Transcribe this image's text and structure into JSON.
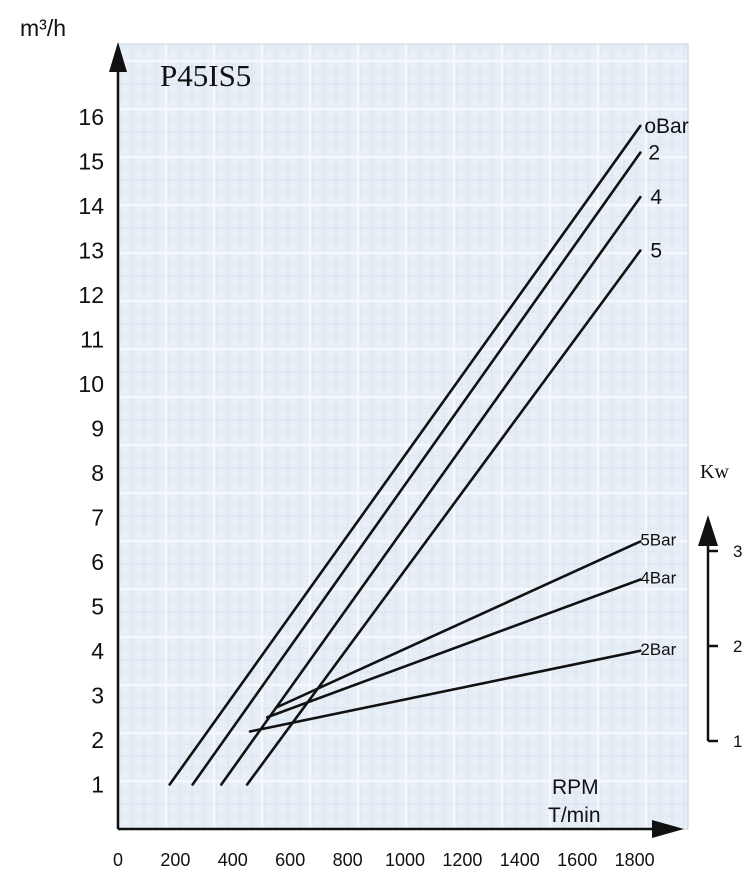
{
  "chart_data": {
    "type": "line",
    "title": "P45IS5",
    "ylabel": "m³/h",
    "xlabel_line1": "RPM",
    "xlabel_line2": "T/min",
    "y2label": "Kw",
    "x_ticks": [
      "0",
      "200",
      "400",
      "600",
      "800",
      "1000",
      "1200",
      "1400",
      "1600",
      "1800"
    ],
    "x_tick_values": [
      0,
      200,
      400,
      600,
      800,
      1000,
      1200,
      1400,
      1600,
      1800
    ],
    "y_ticks": [
      "1",
      "2",
      "3",
      "4",
      "5",
      "6",
      "7",
      "8",
      "9",
      "10",
      "11",
      "12",
      "13",
      "14",
      "15",
      "16"
    ],
    "y_tick_values": [
      1,
      2,
      3,
      4,
      5,
      6,
      7,
      8,
      9,
      10,
      11,
      12,
      13,
      14,
      15,
      16
    ],
    "y2_ticks": [
      "1",
      "2",
      "3"
    ],
    "y2_tick_values": [
      1,
      2,
      3
    ],
    "xlim": [
      0,
      1880
    ],
    "ylim": [
      0,
      17
    ],
    "y2lim": [
      0.7,
      3.4
    ],
    "grid": true,
    "series": [
      {
        "name": "oBar",
        "axis": "left",
        "x": [
          180,
          1820
        ],
        "y": [
          1.0,
          15.8
        ]
      },
      {
        "name": "2",
        "axis": "left",
        "x": [
          260,
          1820
        ],
        "y": [
          1.0,
          15.2
        ]
      },
      {
        "name": "4",
        "axis": "left",
        "x": [
          360,
          1820
        ],
        "y": [
          1.0,
          14.2
        ]
      },
      {
        "name": "5",
        "axis": "left",
        "x": [
          450,
          1820
        ],
        "y": [
          1.0,
          13.0
        ]
      },
      {
        "name": "5Bar",
        "axis": "right",
        "x": [
          550,
          1820
        ],
        "y": [
          1.35,
          3.1
        ]
      },
      {
        "name": "4Bar",
        "axis": "right",
        "x": [
          520,
          1820
        ],
        "y": [
          1.25,
          2.7
        ]
      },
      {
        "name": "2Bar",
        "axis": "right",
        "x": [
          460,
          1820
        ],
        "y": [
          1.1,
          1.95
        ]
      }
    ]
  }
}
